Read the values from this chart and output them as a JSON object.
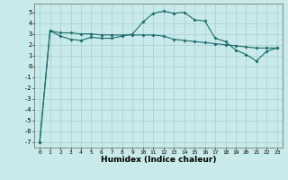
{
  "xlabel": "Humidex (Indice chaleur)",
  "ylabel": "",
  "bg_color": "#c8eaea",
  "line_color": "#1a6b6b",
  "grid_color": "#a8cccc",
  "x_values": [
    0,
    1,
    2,
    3,
    4,
    5,
    6,
    7,
    8,
    9,
    10,
    11,
    12,
    13,
    14,
    15,
    16,
    17,
    18,
    19,
    20,
    21,
    22,
    23
  ],
  "line1": [
    -7.0,
    3.3,
    2.8,
    2.5,
    2.4,
    2.7,
    2.6,
    2.6,
    2.8,
    3.0,
    4.1,
    4.9,
    5.1,
    4.9,
    5.0,
    4.3,
    4.2,
    2.6,
    2.3,
    1.5,
    1.1,
    0.5,
    1.4,
    1.7
  ],
  "line2": [
    -7.0,
    3.3,
    3.1,
    3.1,
    3.0,
    3.0,
    2.9,
    2.9,
    2.9,
    2.9,
    2.9,
    2.9,
    2.8,
    2.5,
    2.4,
    2.3,
    2.2,
    2.1,
    2.0,
    1.9,
    1.8,
    1.7,
    1.7,
    1.7
  ],
  "ylim": [
    -7.5,
    5.8
  ],
  "xlim": [
    -0.5,
    23.5
  ],
  "yticks": [
    -7,
    -6,
    -5,
    -4,
    -3,
    -2,
    -1,
    0,
    1,
    2,
    3,
    4,
    5
  ],
  "xticks": [
    0,
    1,
    2,
    3,
    4,
    5,
    6,
    7,
    8,
    9,
    10,
    11,
    12,
    13,
    14,
    15,
    16,
    17,
    18,
    19,
    20,
    21,
    22,
    23
  ]
}
